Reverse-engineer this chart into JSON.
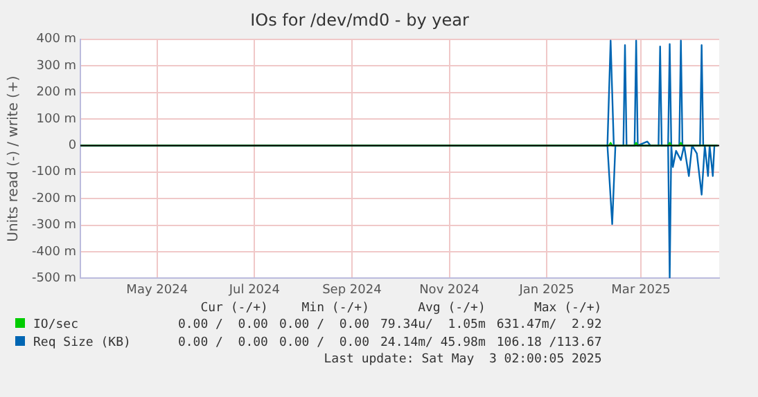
{
  "chart_data": {
    "type": "line",
    "title": "IOs for /dev/md0 - by year",
    "ylabel": "Units read (-) / write (+)",
    "xlim": [
      "2024-03-29",
      "2025-05-03"
    ],
    "xticks": [
      {
        "value": "2024-05-16",
        "label": "May 2024"
      },
      {
        "value": "2024-07-16",
        "label": "Jul 2024"
      },
      {
        "value": "2024-09-15",
        "label": "Sep 2024"
      },
      {
        "value": "2024-11-15",
        "label": "Nov 2024"
      },
      {
        "value": "2025-01-15",
        "label": "Jan 2025"
      },
      {
        "value": "2025-03-15",
        "label": "Mar 2025"
      }
    ],
    "ylim": [
      -500,
      400
    ],
    "yticks": [
      {
        "value": -500,
        "label": "-500 m"
      },
      {
        "value": -400,
        "label": "-400 m"
      },
      {
        "value": -300,
        "label": "-300 m"
      },
      {
        "value": -200,
        "label": "-200 m"
      },
      {
        "value": -100,
        "label": "-100 m"
      },
      0,
      {
        "value": 100,
        "label": "100 m"
      },
      {
        "value": 200,
        "label": "200 m"
      },
      {
        "value": 300,
        "label": "300 m"
      },
      {
        "value": 400,
        "label": "400 m"
      }
    ],
    "grid": true,
    "legend": "bottom",
    "marker": "none",
    "line_style": "solid",
    "ref_lines": [
      {
        "axis": "y",
        "value": 0,
        "color": "#000000"
      }
    ],
    "series": [
      {
        "name": "IO/sec",
        "color": "#00cc00",
        "x": [
          "2024-03-29",
          "2025-02-23",
          "2025-02-24",
          "2025-02-25",
          "2025-03-11",
          "2025-03-12",
          "2025-03-13",
          "2025-04-01",
          "2025-04-02",
          "2025-04-03",
          "2025-04-08",
          "2025-04-09",
          "2025-04-10",
          "2025-05-02"
        ],
        "values": [
          0,
          0,
          10,
          0,
          0,
          10,
          0,
          0,
          10,
          0,
          0,
          10,
          0,
          0
        ]
      },
      {
        "name": "Req Size (KB)",
        "color": "#0066b3",
        "x": [
          "2024-03-29",
          "2025-02-22",
          "2025-02-24",
          "2025-02-26",
          "2025-03-04",
          "2025-03-05",
          "2025-03-06",
          "2025-03-11",
          "2025-03-12",
          "2025-03-13",
          "2025-03-19",
          "2025-03-21",
          "2025-03-26",
          "2025-03-27",
          "2025-03-28",
          "2025-04-01",
          "2025-04-02",
          "2025-04-03",
          "2025-04-08",
          "2025-04-09",
          "2025-04-10",
          "2025-04-21",
          "2025-04-22",
          "2025-04-23",
          "2025-05-02"
        ],
        "values": [
          0,
          0,
          395,
          0,
          0,
          378,
          0,
          0,
          395,
          0,
          15,
          0,
          0,
          373,
          0,
          0,
          382,
          0,
          0,
          395,
          0,
          0,
          378,
          0,
          0
        ]
      },
      {
        "color": "#0066b3",
        "x": [
          "2024-03-29",
          "2025-02-22",
          "2025-02-25",
          "2025-02-27",
          "2025-04-01",
          "2025-04-02",
          "2025-04-03",
          "2025-04-04",
          "2025-04-06",
          "2025-04-09",
          "2025-04-11",
          "2025-04-14",
          "2025-04-16",
          "2025-04-19",
          "2025-04-22",
          "2025-04-24",
          "2025-04-26",
          "2025-04-27",
          "2025-04-29",
          "2025-04-30",
          "2025-05-02"
        ],
        "values": [
          0,
          0,
          -296,
          0,
          0,
          -497,
          0,
          -81,
          -20,
          -55,
          0,
          -115,
          0,
          -30,
          -185,
          0,
          -115,
          0,
          -115,
          0,
          0
        ]
      }
    ],
    "annotations": [
      "Cur (-/+)",
      "Min (-/+)",
      "Avg (-/+)",
      "Max (-/+)",
      "0.00 /  0.00",
      "0.00 /  0.00",
      "79.34u/  1.05m",
      "631.47m/  2.92",
      "0.00 /  0.00",
      "0.00 /  0.00",
      "24.14m/ 45.98m",
      "106.18 /113.67",
      "Last update: Sat May  3 02:00:05 2025"
    ]
  }
}
